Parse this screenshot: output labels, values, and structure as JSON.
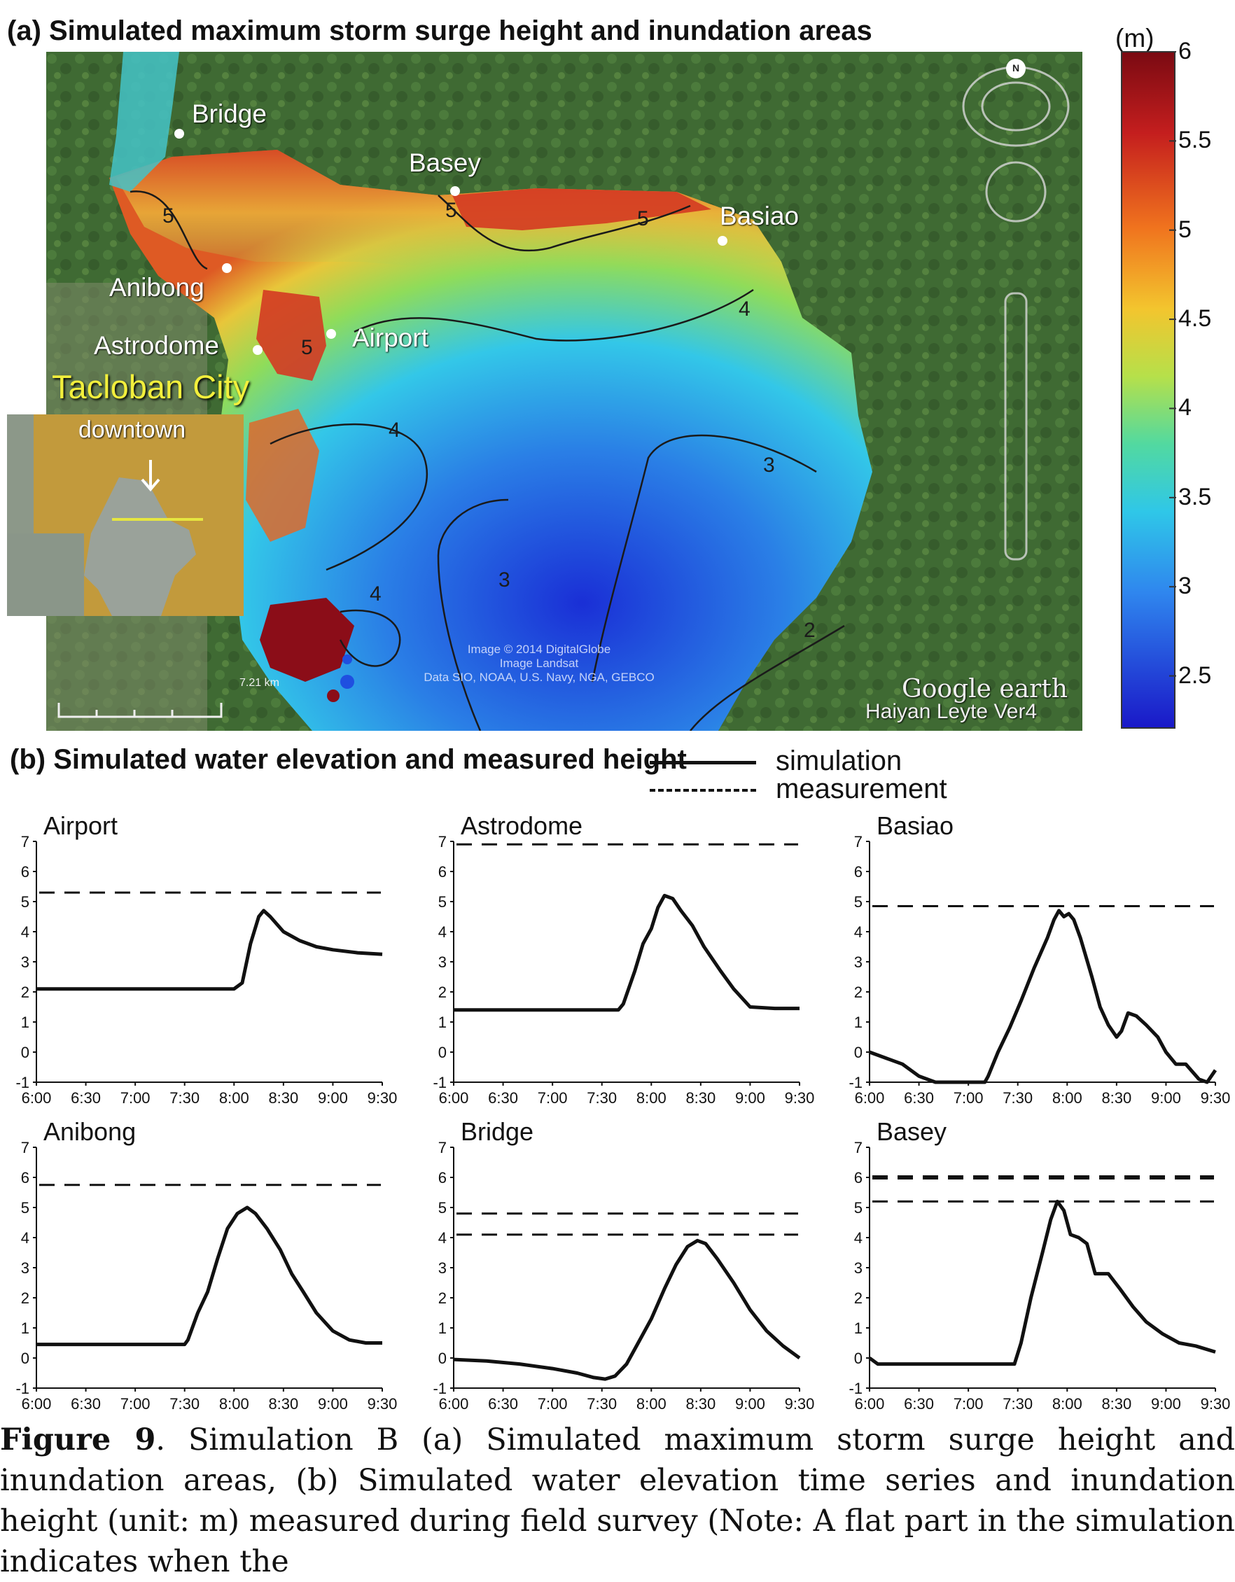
{
  "panel_a": {
    "title": "(a) Simulated maximum storm surge height and inundation areas",
    "unit": "(m)",
    "colorbar_ticks": [
      "6",
      "5.5",
      "5",
      "4.5",
      "4",
      "3.5",
      "3",
      "2.5"
    ],
    "colorbar_values": [
      6,
      5.5,
      5,
      4.5,
      4,
      3.5,
      3,
      2.5
    ],
    "places": [
      "Bridge",
      "Basey",
      "Basiao",
      "Anibong",
      "Airport",
      "Astrodome"
    ],
    "city": "Tacloban City",
    "inset_label": "downtown",
    "contour_labels": [
      "5",
      "5",
      "5",
      "5",
      "4",
      "4",
      "4",
      "3",
      "3",
      "2"
    ],
    "scale_label": "7.21 km",
    "credits": [
      "Image © 2014 DigitalGlobe",
      "Image Landsat",
      "Data SIO, NOAA, U.S. Navy, NGA, GEBCO"
    ],
    "brand": "Google earth",
    "tag": "Haiyan Leyte Ver4",
    "compass": "N",
    "colors": {
      "low": "#1a2fd6",
      "mid": "#22c6e8",
      "midhigh": "#e8c63a",
      "high": "#d2371f",
      "max": "#8b0d18"
    }
  },
  "panel_b": {
    "title": "(b) Simulated water elevation and measured height",
    "legend": {
      "simulation": "simulation",
      "measurement": "measurement"
    }
  },
  "chart_data": [
    {
      "type": "line",
      "title": "Airport",
      "x": [
        "6:00",
        "6:30",
        "7:00",
        "7:30",
        "8:00",
        "8:30",
        "9:00",
        "9:30"
      ],
      "y_ticks": [
        "7",
        "6",
        "5",
        "4",
        "3",
        "2",
        "1",
        "0",
        "-1"
      ],
      "ylim": [
        -1,
        7
      ],
      "simulation": [
        [
          0,
          2.1
        ],
        [
          60,
          2.1
        ],
        [
          120,
          2.1
        ],
        [
          125,
          2.3
        ],
        [
          130,
          3.6
        ],
        [
          135,
          4.5
        ],
        [
          138,
          4.7
        ],
        [
          142,
          4.5
        ],
        [
          150,
          4.0
        ],
        [
          160,
          3.7
        ],
        [
          170,
          3.5
        ],
        [
          180,
          3.4
        ],
        [
          195,
          3.3
        ],
        [
          210,
          3.25
        ]
      ],
      "measurement": [
        5.3
      ]
    },
    {
      "type": "line",
      "title": "Astrodome",
      "x": [
        "6:00",
        "6:30",
        "7:00",
        "7:30",
        "8:00",
        "8:30",
        "9:00",
        "9:30"
      ],
      "y_ticks": [
        "7",
        "6",
        "5",
        "4",
        "3",
        "2",
        "1",
        "0",
        "-1"
      ],
      "ylim": [
        -1,
        7
      ],
      "simulation": [
        [
          0,
          1.4
        ],
        [
          50,
          1.4
        ],
        [
          100,
          1.4
        ],
        [
          103,
          1.6
        ],
        [
          110,
          2.7
        ],
        [
          115,
          3.6
        ],
        [
          120,
          4.1
        ],
        [
          124,
          4.8
        ],
        [
          128,
          5.2
        ],
        [
          133,
          5.1
        ],
        [
          138,
          4.7
        ],
        [
          145,
          4.2
        ],
        [
          152,
          3.5
        ],
        [
          162,
          2.7
        ],
        [
          170,
          2.1
        ],
        [
          180,
          1.5
        ],
        [
          195,
          1.45
        ],
        [
          210,
          1.45
        ]
      ],
      "measurement": [
        6.9
      ]
    },
    {
      "type": "line",
      "title": "Basiao",
      "x": [
        "6:00",
        "6:30",
        "7:00",
        "7:30",
        "8:00",
        "8:30",
        "9:00",
        "9:30"
      ],
      "y_ticks": [
        "7",
        "6",
        "5",
        "4",
        "3",
        "2",
        "1",
        "0",
        "-1"
      ],
      "ylim": [
        -1,
        7
      ],
      "simulation": [
        [
          0,
          0
        ],
        [
          10,
          -0.2
        ],
        [
          20,
          -0.4
        ],
        [
          30,
          -0.8
        ],
        [
          40,
          -1.0
        ],
        [
          60,
          -1.0
        ],
        [
          70,
          -1.0
        ],
        [
          72,
          -0.8
        ],
        [
          78,
          0
        ],
        [
          85,
          0.8
        ],
        [
          92,
          1.7
        ],
        [
          100,
          2.8
        ],
        [
          108,
          3.8
        ],
        [
          112,
          4.4
        ],
        [
          115,
          4.7
        ],
        [
          118,
          4.5
        ],
        [
          121,
          4.6
        ],
        [
          124,
          4.4
        ],
        [
          128,
          3.8
        ],
        [
          135,
          2.5
        ],
        [
          140,
          1.5
        ],
        [
          145,
          0.9
        ],
        [
          150,
          0.5
        ],
        [
          153,
          0.7
        ],
        [
          157,
          1.3
        ],
        [
          162,
          1.2
        ],
        [
          168,
          0.9
        ],
        [
          175,
          0.5
        ],
        [
          180,
          0.0
        ],
        [
          186,
          -0.4
        ],
        [
          192,
          -0.4
        ],
        [
          200,
          -0.9
        ],
        [
          205,
          -1.0
        ],
        [
          210,
          -0.6
        ]
      ],
      "measurement": [
        4.85
      ]
    },
    {
      "type": "line",
      "title": "Anibong",
      "x": [
        "6:00",
        "6:30",
        "7:00",
        "7:30",
        "8:00",
        "8:30",
        "9:00",
        "9:30"
      ],
      "y_ticks": [
        "7",
        "6",
        "5",
        "4",
        "3",
        "2",
        "1",
        "0",
        "-1"
      ],
      "ylim": [
        -1,
        7
      ],
      "simulation": [
        [
          0,
          0.45
        ],
        [
          50,
          0.45
        ],
        [
          90,
          0.45
        ],
        [
          92,
          0.6
        ],
        [
          98,
          1.5
        ],
        [
          104,
          2.2
        ],
        [
          110,
          3.3
        ],
        [
          116,
          4.3
        ],
        [
          122,
          4.8
        ],
        [
          128,
          5.0
        ],
        [
          133,
          4.8
        ],
        [
          140,
          4.3
        ],
        [
          148,
          3.6
        ],
        [
          155,
          2.8
        ],
        [
          162,
          2.2
        ],
        [
          170,
          1.5
        ],
        [
          180,
          0.9
        ],
        [
          190,
          0.6
        ],
        [
          200,
          0.5
        ],
        [
          210,
          0.5
        ]
      ],
      "measurement": [
        5.75
      ]
    },
    {
      "type": "line",
      "title": "Bridge",
      "x": [
        "6:00",
        "6:30",
        "7:00",
        "7:30",
        "8:00",
        "8:30",
        "9:00",
        "9:30"
      ],
      "y_ticks": [
        "7",
        "6",
        "5",
        "4",
        "3",
        "2",
        "1",
        "0",
        "-1"
      ],
      "ylim": [
        -1,
        7
      ],
      "simulation": [
        [
          0,
          -0.05
        ],
        [
          20,
          -0.1
        ],
        [
          40,
          -0.2
        ],
        [
          60,
          -0.35
        ],
        [
          75,
          -0.5
        ],
        [
          85,
          -0.65
        ],
        [
          92,
          -0.7
        ],
        [
          98,
          -0.6
        ],
        [
          105,
          -0.2
        ],
        [
          112,
          0.5
        ],
        [
          120,
          1.3
        ],
        [
          128,
          2.3
        ],
        [
          135,
          3.1
        ],
        [
          142,
          3.7
        ],
        [
          148,
          3.9
        ],
        [
          153,
          3.8
        ],
        [
          160,
          3.3
        ],
        [
          170,
          2.5
        ],
        [
          180,
          1.6
        ],
        [
          190,
          0.9
        ],
        [
          200,
          0.4
        ],
        [
          210,
          0.0
        ]
      ],
      "measurement": [
        4.8,
        4.1
      ]
    },
    {
      "type": "line",
      "title": "Basey",
      "x": [
        "6:00",
        "6:30",
        "7:00",
        "7:30",
        "8:00",
        "8:30",
        "9:00",
        "9:30"
      ],
      "y_ticks": [
        "7",
        "6",
        "5",
        "4",
        "3",
        "2",
        "1",
        "0",
        "-1"
      ],
      "ylim": [
        -1,
        7
      ],
      "simulation": [
        [
          0,
          0.0
        ],
        [
          5,
          -0.2
        ],
        [
          30,
          -0.2
        ],
        [
          60,
          -0.2
        ],
        [
          88,
          -0.2
        ],
        [
          92,
          0.5
        ],
        [
          98,
          2.0
        ],
        [
          105,
          3.5
        ],
        [
          110,
          4.6
        ],
        [
          114,
          5.2
        ],
        [
          118,
          4.9
        ],
        [
          122,
          4.1
        ],
        [
          127,
          4.0
        ],
        [
          132,
          3.8
        ],
        [
          137,
          2.8
        ],
        [
          145,
          2.8
        ],
        [
          152,
          2.3
        ],
        [
          160,
          1.7
        ],
        [
          168,
          1.2
        ],
        [
          178,
          0.8
        ],
        [
          188,
          0.5
        ],
        [
          198,
          0.4
        ],
        [
          210,
          0.2
        ]
      ],
      "measurement": [
        6.0,
        5.2
      ]
    }
  ],
  "caption": {
    "label": "Figure 9",
    "text": ". Simulation B (a) Simulated maximum storm surge height and inundation areas, (b) Simulated water elevation time series and inundation height (unit: m) measured during field survey (Note: A flat part in the simulation indicates when the"
  }
}
